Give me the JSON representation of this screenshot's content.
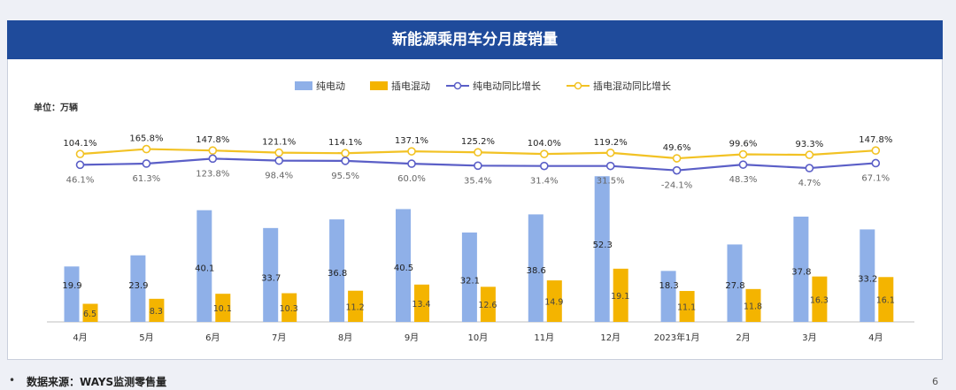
{
  "header": {
    "title": "新能源乘用车分月度销量"
  },
  "footer": {
    "source": "数据来源：WAYS监测零售量",
    "bullet": "•",
    "page": "6"
  },
  "colors": {
    "ev": "#8fb0e8",
    "phev": "#f4b400",
    "ev_line": "#5b5fc7",
    "phev_line": "#f2c224",
    "header_bg": "#1f4b9b"
  },
  "chart_data": {
    "type": "bar",
    "unit_label": "单位：万辆",
    "categories": [
      "4月",
      "5月",
      "6月",
      "7月",
      "8月",
      "9月",
      "10月",
      "11月",
      "12月",
      "2023年1月",
      "2月",
      "3月",
      "4月"
    ],
    "series": [
      {
        "name": "纯电动",
        "kind": "bar",
        "values": [
          19.9,
          23.9,
          40.1,
          33.7,
          36.8,
          40.5,
          32.1,
          38.6,
          52.3,
          18.3,
          27.8,
          37.8,
          33.2
        ]
      },
      {
        "name": "插电混动",
        "kind": "bar",
        "values": [
          6.5,
          8.3,
          10.1,
          10.3,
          11.2,
          13.4,
          12.6,
          14.9,
          19.1,
          11.1,
          11.8,
          16.3,
          16.1
        ]
      },
      {
        "name": "纯电动同比增长",
        "kind": "line",
        "values": [
          46.1,
          61.3,
          123.8,
          98.4,
          95.5,
          60.0,
          35.4,
          31.4,
          31.5,
          -24.1,
          48.3,
          4.7,
          67.1
        ],
        "labels": [
          "46.1%",
          "61.3%",
          "123.8%",
          "98.4%",
          "95.5%",
          "60.0%",
          "35.4%",
          "31.4%",
          "31.5%",
          "-24.1%",
          "48.3%",
          "4.7%",
          "67.1%"
        ]
      },
      {
        "name": "插电混动同比增长",
        "kind": "line",
        "values": [
          104.1,
          165.8,
          147.8,
          121.1,
          114.1,
          137.1,
          125.2,
          104.0,
          119.2,
          49.6,
          99.6,
          93.3,
          147.8
        ],
        "labels": [
          "104.1%",
          "165.8%",
          "147.8%",
          "121.1%",
          "114.1%",
          "137.1%",
          "125.2%",
          "104.0%",
          "119.2%",
          "49.6%",
          "99.6%",
          "93.3%",
          "147.8%"
        ]
      }
    ],
    "legend": "top-center",
    "grid": false
  }
}
